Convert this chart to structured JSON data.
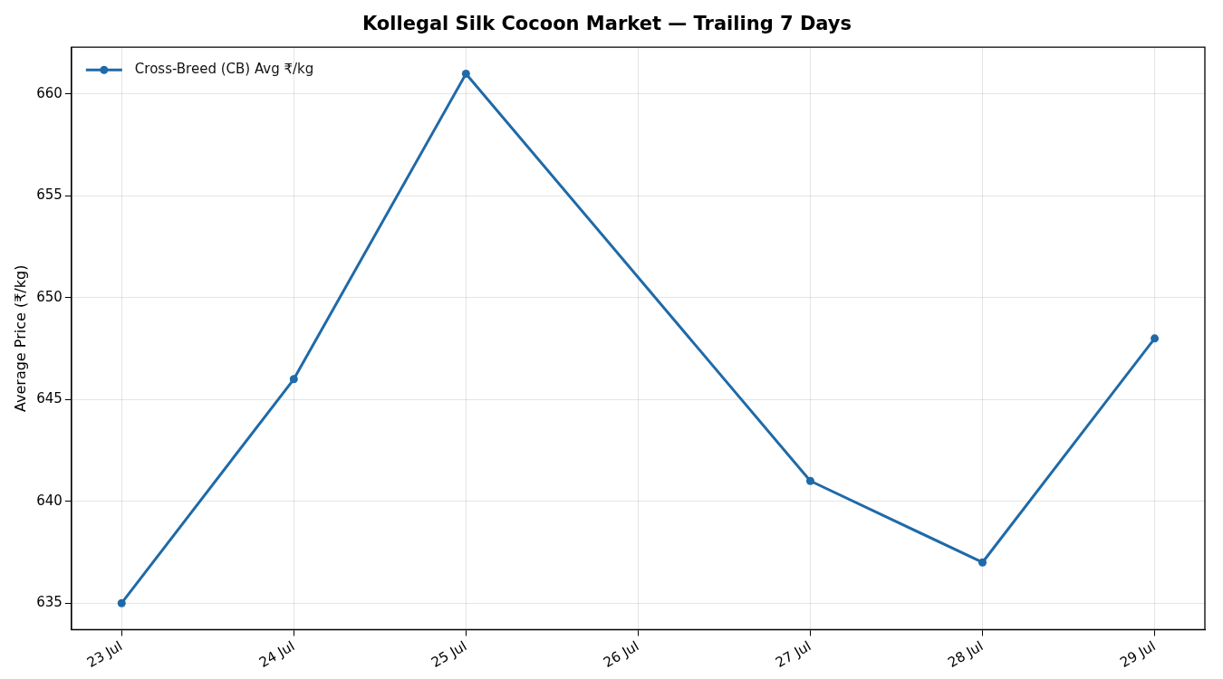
{
  "chart_data": {
    "type": "line",
    "title": "Kollegal Silk Cocoon Market — Trailing 7 Days",
    "ylabel": "Average Price (₹/kg)",
    "x": [
      "--07-23",
      "--07-24",
      "--07-25",
      "--07-27",
      "--07-28",
      "--07-29"
    ],
    "series": [
      {
        "name": "Cross-Breed (CB) Avg ₹/kg",
        "color": "#1f6aa8",
        "values": [
          635,
          646,
          661,
          641,
          637,
          648
        ]
      }
    ],
    "xlim": [
      "--07-22T17:00",
      "--07-29T07:00"
    ],
    "xticks": [
      {
        "value": "--07-23",
        "label": "23 Jul"
      },
      {
        "value": "--07-24",
        "label": "24 Jul"
      },
      {
        "value": "--07-25",
        "label": "25 Jul"
      },
      {
        "value": "--07-26",
        "label": "26 Jul"
      },
      {
        "value": "--07-27",
        "label": "27 Jul"
      },
      {
        "value": "--07-28",
        "label": "28 Jul"
      },
      {
        "value": "--07-29",
        "label": "29 Jul"
      }
    ],
    "ylim": [
      633.7,
      662.3
    ],
    "yticks": [
      635,
      640,
      645,
      650,
      655,
      660
    ],
    "grid": true,
    "legend": "top left",
    "marker": "circle",
    "line_style": "solid"
  }
}
